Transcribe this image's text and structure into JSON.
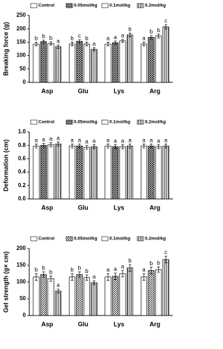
{
  "chart_data": [
    {
      "type": "bar",
      "ylabel": "Breaking force (g)",
      "categories": [
        "Asp",
        "Glu",
        "Lys",
        "Arg"
      ],
      "ylim": [
        0,
        250
      ],
      "yticks": [
        0,
        50,
        100,
        150,
        200,
        250
      ],
      "series": [
        {
          "name": "Control",
          "color": "#ffffff",
          "pattern": "none",
          "values": [
            143,
            143,
            143,
            143
          ],
          "errors": [
            7,
            7,
            7,
            7
          ],
          "letters": [
            "b",
            "b",
            "a",
            "a"
          ]
        },
        {
          "name": "0.05mol/kg",
          "color": "#ffffff",
          "pattern": "crosshatch",
          "values": [
            152,
            153,
            148,
            168
          ],
          "errors": [
            6,
            6,
            6,
            7
          ],
          "letters": [
            "b",
            "c",
            "a",
            "b"
          ]
        },
        {
          "name": "0.1mol/kg",
          "color": "#ffffff",
          "pattern": "dots",
          "values": [
            145,
            143,
            155,
            173
          ],
          "errors": [
            6,
            7,
            6,
            7
          ],
          "letters": [
            "b",
            "b",
            "a",
            "b"
          ]
        },
        {
          "name": "0.2mol/kg",
          "color": "#ffffff",
          "pattern": "vertical",
          "values": [
            133,
            123,
            177,
            207
          ],
          "errors": [
            6,
            6,
            7,
            8
          ],
          "letters": [
            "a",
            "a",
            "b",
            "c"
          ]
        }
      ]
    },
    {
      "type": "bar",
      "ylabel": "Deformation (cm)",
      "categories": [
        "Asp",
        "Glu",
        "Lys",
        "Arg"
      ],
      "ylim": [
        0,
        1
      ],
      "yticks": [
        {
          "value": 0,
          "label": "0.0"
        },
        0.2,
        0.4,
        0.6,
        0.8,
        {
          "value": 1,
          "label": "1.0"
        }
      ],
      "series": [
        {
          "name": "Control",
          "color": "#ffffff",
          "pattern": "none",
          "values": [
            0.79,
            0.79,
            0.79,
            0.79
          ],
          "errors": [
            0.03,
            0.03,
            0.03,
            0.03
          ],
          "letters": [
            "a",
            "a",
            "a",
            "a"
          ]
        },
        {
          "name": "0.05mol/kg",
          "color": "#ffffff",
          "pattern": "crosshatch",
          "values": [
            0.8,
            0.79,
            0.78,
            0.79
          ],
          "errors": [
            0.03,
            0.03,
            0.03,
            0.03
          ],
          "letters": [
            "a",
            "a",
            "a",
            "a"
          ]
        },
        {
          "name": "0.1mol/kg",
          "color": "#ffffff",
          "pattern": "dots",
          "values": [
            0.81,
            0.77,
            0.78,
            0.78
          ],
          "errors": [
            0.03,
            0.03,
            0.03,
            0.03
          ],
          "letters": [
            "a",
            "a",
            "a",
            "a"
          ]
        },
        {
          "name": "0.2mol/kg",
          "color": "#ffffff",
          "pattern": "vertical",
          "values": [
            0.82,
            0.78,
            0.79,
            0.79
          ],
          "errors": [
            0.03,
            0.03,
            0.03,
            0.03
          ],
          "letters": [
            "a",
            "a",
            "a",
            "a"
          ]
        }
      ]
    },
    {
      "type": "bar",
      "ylabel": "Gel strength (g× cm)",
      "categories": [
        "Asp",
        "Glu",
        "Lys",
        "Arg"
      ],
      "ylim": [
        0,
        200
      ],
      "yticks": [
        0,
        50,
        100,
        150,
        200
      ],
      "series": [
        {
          "name": "Control",
          "color": "#ffffff",
          "pattern": "none",
          "values": [
            115,
            115,
            115,
            115
          ],
          "errors": [
            10,
            10,
            10,
            10
          ],
          "letters": [
            "b",
            "b",
            "a",
            "a"
          ]
        },
        {
          "name": "0.05mol/kg",
          "color": "#ffffff",
          "pattern": "diagonal",
          "values": [
            122,
            122,
            117,
            134
          ],
          "errors": [
            8,
            8,
            10,
            10
          ],
          "letters": [
            "b",
            "b",
            "a",
            "b"
          ]
        },
        {
          "name": "0.1mol/kg",
          "color": "#ffffff",
          "pattern": "dots",
          "values": [
            110,
            113,
            125,
            137
          ],
          "errors": [
            8,
            8,
            10,
            8
          ],
          "letters": [
            "b",
            "b",
            "a",
            "b"
          ]
        },
        {
          "name": "0.2mol/kg",
          "color": "#ffffff",
          "pattern": "vertical",
          "values": [
            73,
            98,
            142,
            167
          ],
          "errors": [
            6,
            6,
            10,
            10
          ],
          "letters": [
            "a",
            "a",
            "b",
            "c"
          ]
        }
      ]
    }
  ]
}
